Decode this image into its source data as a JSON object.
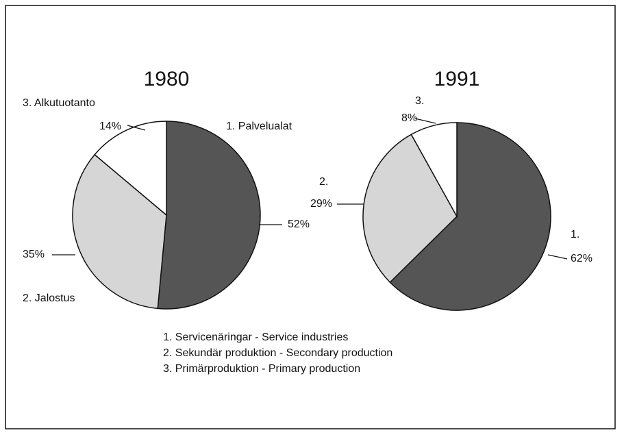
{
  "chart_data": [
    {
      "type": "pie",
      "title": "1980",
      "categories": [
        "1. Palvelualat",
        "2. Jalostus",
        "3. Alkutuotanto"
      ],
      "values": [
        52,
        35,
        14
      ],
      "value_labels": [
        "52%",
        "35%",
        "14%"
      ],
      "colors": [
        "#555555",
        "#d6d6d6",
        "#ffffff"
      ]
    },
    {
      "type": "pie",
      "title": "1991",
      "categories": [
        "1.",
        "2.",
        "3."
      ],
      "values": [
        62,
        29,
        8
      ],
      "value_labels": [
        "62%",
        "29%",
        "8%"
      ],
      "colors": [
        "#555555",
        "#d6d6d6",
        "#ffffff"
      ]
    }
  ],
  "legend": {
    "items": [
      "1. Servicenäringar - Service industries",
      "2. Sekundär produktion - Secondary production",
      "3. Primärproduktion - Primary production"
    ]
  }
}
